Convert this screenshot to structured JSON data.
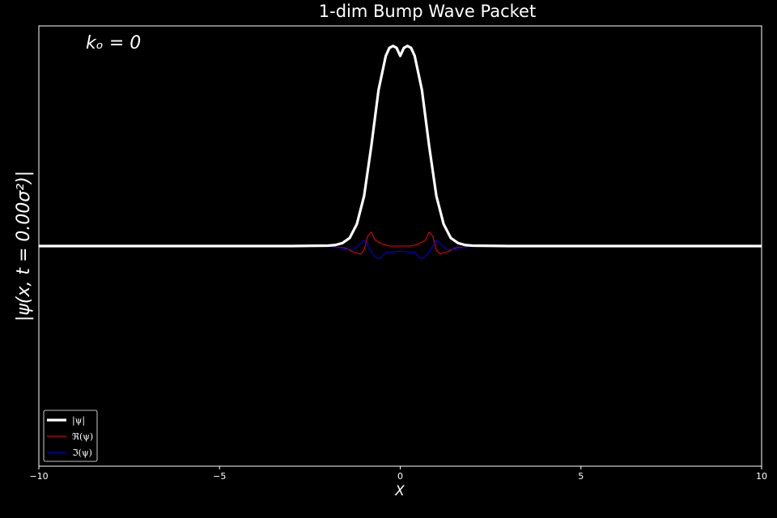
{
  "chart_data": {
    "type": "line",
    "title": "1-dim Bump Wave Packet",
    "xlabel": "X",
    "ylabel": "|ψ(x, t = 0.00σ²)|",
    "annotation": "kₒ = 0",
    "xlim": [
      -10,
      10
    ],
    "ylim": [
      -1.1,
      1.1
    ],
    "xticks": [
      -10,
      -5,
      0,
      5,
      10
    ],
    "grid": false,
    "legend_position": "lower-left",
    "background": "#000000",
    "series": [
      {
        "name": "|ψ|",
        "color": "#ffffff",
        "x": [
          -10,
          -3,
          -2,
          -1.8,
          -1.6,
          -1.4,
          -1.2,
          -1.0,
          -0.8,
          -0.6,
          -0.4,
          -0.3,
          -0.2,
          -0.1,
          0,
          0.1,
          0.2,
          0.3,
          0.4,
          0.6,
          0.8,
          1.0,
          1.2,
          1.4,
          1.6,
          1.8,
          2,
          3,
          10
        ],
        "y": [
          0,
          0,
          0.002,
          0.005,
          0.015,
          0.04,
          0.11,
          0.25,
          0.5,
          0.78,
          0.95,
          0.99,
          1.0,
          0.99,
          0.95,
          0.99,
          1.0,
          0.99,
          0.95,
          0.78,
          0.5,
          0.25,
          0.11,
          0.04,
          0.015,
          0.005,
          0.002,
          0,
          0
        ]
      },
      {
        "name": "ℜ(ψ)",
        "color": "#ff0000",
        "x": [
          -10,
          -2,
          -1.5,
          -1.3,
          -1.1,
          -1.0,
          -0.9,
          -0.8,
          -0.7,
          -0.5,
          -0.3,
          0,
          0.3,
          0.5,
          0.7,
          0.8,
          0.9,
          1.0,
          1.1,
          1.3,
          1.5,
          2,
          10
        ],
        "y": [
          0,
          0,
          -0.01,
          -0.03,
          -0.04,
          -0.02,
          0.05,
          0.07,
          0.03,
          0.01,
          0,
          0,
          0,
          0.01,
          0.03,
          0.07,
          0.05,
          -0.02,
          -0.04,
          -0.03,
          -0.01,
          0,
          0
        ]
      },
      {
        "name": "ℑ(ψ)",
        "color": "#0000ff",
        "x": [
          -10,
          -2,
          -1.6,
          -1.3,
          -1.0,
          -0.8,
          -0.65,
          -0.55,
          -0.4,
          -0.2,
          0,
          0.2,
          0.4,
          0.55,
          0.65,
          0.8,
          1.0,
          1.3,
          1.6,
          2,
          10
        ],
        "y": [
          0,
          0,
          -0.01,
          -0.02,
          0.03,
          -0.03,
          -0.06,
          -0.06,
          -0.03,
          -0.03,
          -0.025,
          -0.03,
          -0.03,
          -0.06,
          -0.06,
          -0.03,
          0.03,
          -0.02,
          -0.01,
          0,
          0
        ]
      }
    ]
  }
}
